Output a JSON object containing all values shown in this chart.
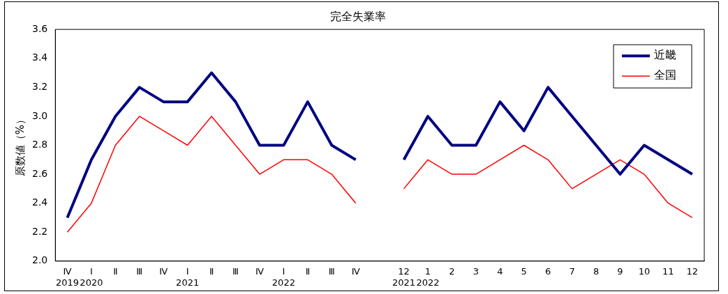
{
  "chart_data": {
    "type": "line",
    "title": "完全失業率",
    "ylabel": "原数値（%）",
    "categories": [
      "Ⅳ\n2019",
      "Ⅰ\n2020",
      "Ⅱ",
      "Ⅲ",
      "Ⅳ",
      "Ⅰ\n2021",
      "Ⅱ",
      "Ⅲ",
      "Ⅳ",
      "Ⅰ\n2022",
      "Ⅱ",
      "Ⅲ",
      "Ⅳ",
      null,
      "12\n2021",
      "1\n2022",
      "2",
      "3",
      "4",
      "5",
      "6",
      "7",
      "8",
      "9",
      "10",
      "11",
      "12"
    ],
    "series": [
      {
        "name": "近畿",
        "color": "#000080",
        "values": [
          2.3,
          2.7,
          3.0,
          3.2,
          3.1,
          3.1,
          3.3,
          3.1,
          2.8,
          2.8,
          3.1,
          2.8,
          2.7,
          null,
          2.7,
          3.0,
          2.8,
          2.8,
          3.1,
          2.9,
          3.2,
          3.0,
          2.8,
          2.6,
          2.8,
          2.7,
          2.6
        ]
      },
      {
        "name": "全国",
        "color": "#ff0000",
        "values": [
          2.2,
          2.4,
          2.8,
          3.0,
          2.9,
          2.8,
          3.0,
          2.8,
          2.6,
          2.7,
          2.7,
          2.6,
          2.4,
          null,
          2.5,
          2.7,
          2.6,
          2.6,
          2.7,
          2.8,
          2.7,
          2.5,
          2.6,
          2.7,
          2.6,
          2.4,
          2.3
        ]
      }
    ],
    "ylim": [
      2.0,
      3.6
    ],
    "yticks": [
      {
        "value": 2.0,
        "label": "2.0"
      },
      {
        "value": 2.2,
        "label": "2.2"
      },
      {
        "value": 2.4,
        "label": "2.4"
      },
      {
        "value": 2.6,
        "label": "2.6"
      },
      {
        "value": 2.8,
        "label": "2.8"
      },
      {
        "value": 3.0,
        "label": "3.0"
      },
      {
        "value": 3.2,
        "label": "3.2"
      },
      {
        "value": 3.4,
        "label": "3.4"
      },
      {
        "value": 3.6,
        "label": "3.6"
      }
    ],
    "grid": false,
    "legend": "top right",
    "marker": "none",
    "line_style": "solid"
  }
}
